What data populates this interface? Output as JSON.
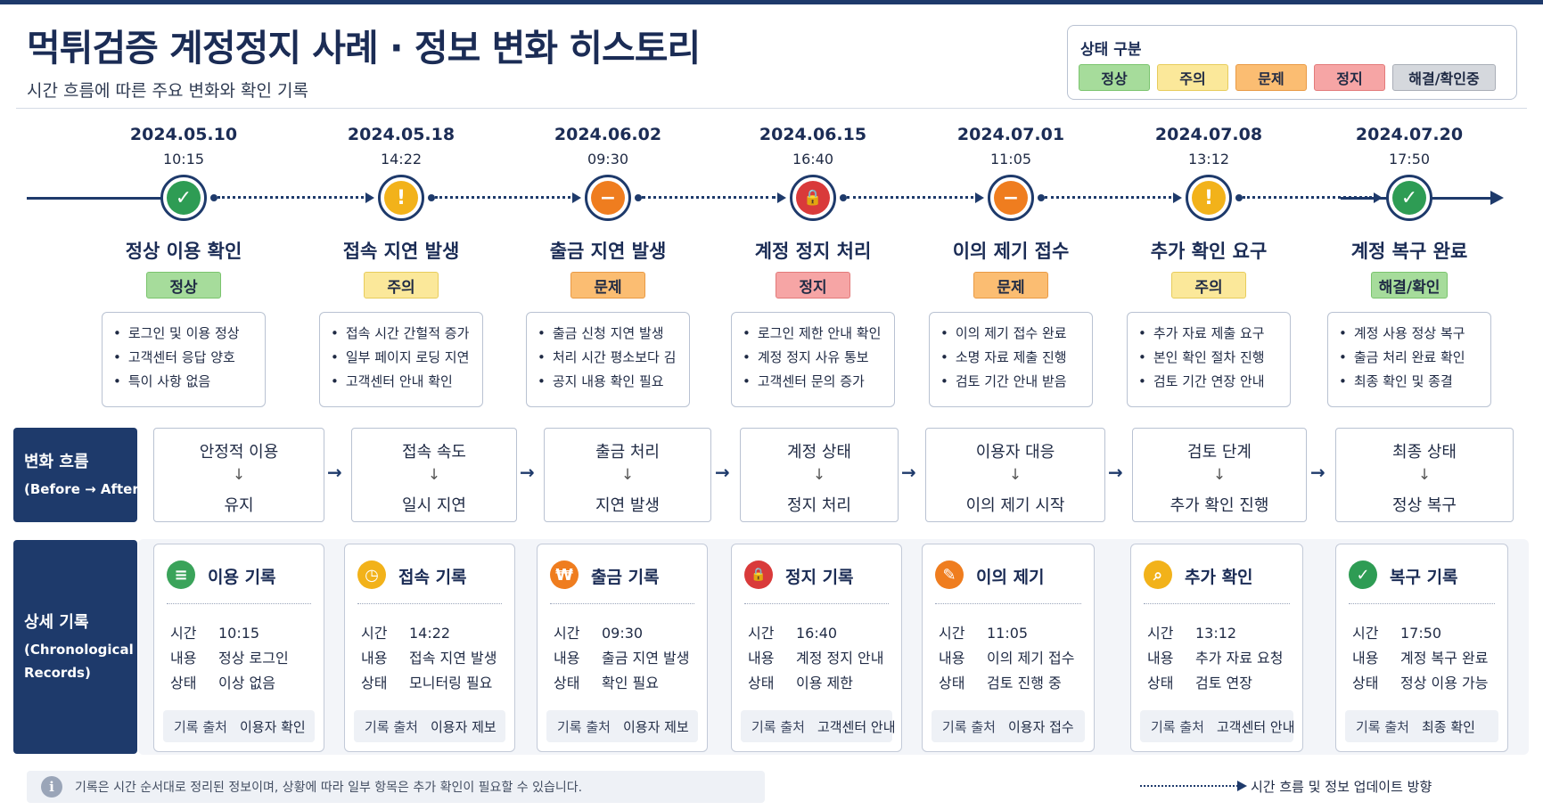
{
  "title": "먹튀검증 계정정지 사례 · 정보 변화 히스토리",
  "subtitle": "시간 흐름에 따른 주요 변화와 확인 기록",
  "legend": {
    "title": "상태 구분",
    "items": [
      {
        "label": "정상",
        "bg": "#a6dc9b",
        "border": "#7bc46e"
      },
      {
        "label": "주의",
        "bg": "#fbe89a",
        "border": "#e7cc5c"
      },
      {
        "label": "문제",
        "bg": "#fbbd72",
        "border": "#e99a45"
      },
      {
        "label": "정지",
        "bg": "#f6a5a5",
        "border": "#e27a7a"
      },
      {
        "label": "해결/확인중",
        "bg": "#d5d8dd",
        "border": "#a9aeb7"
      }
    ]
  },
  "events": [
    {
      "date": "2024.05.10",
      "time": "10:15",
      "name": "정상 이용 확인",
      "badge": "정상",
      "badge_bg": "#a6dc9b",
      "badge_border": "#7bc46e",
      "icon": "check-icon",
      "glyph": "✓",
      "color": "#2e9c54",
      "bullets": [
        "로그인 및 이용 정상",
        "고객센터 응답 양호",
        "특이 사항 없음"
      ]
    },
    {
      "date": "2024.05.18",
      "time": "14:22",
      "name": "접속 지연 발생",
      "badge": "주의",
      "badge_bg": "#fbe89a",
      "badge_border": "#e7cc5c",
      "icon": "exclamation-icon",
      "glyph": "!",
      "color": "#f2b21a",
      "bullets": [
        "접속 시간 간헐적 증가",
        "일부 페이지 로딩 지연",
        "고객센터 안내 확인"
      ]
    },
    {
      "date": "2024.06.02",
      "time": "09:30",
      "name": "출금 지연 발생",
      "badge": "문제",
      "badge_bg": "#fbbd72",
      "badge_border": "#e99a45",
      "icon": "minus-icon",
      "glyph": "−",
      "color": "#ef7d1f",
      "bullets": [
        "출금 신청 지연 발생",
        "처리 시간 평소보다 김",
        "공지 내용 확인 필요"
      ]
    },
    {
      "date": "2024.06.15",
      "time": "16:40",
      "name": "계정 정지 처리",
      "badge": "정지",
      "badge_bg": "#f6a5a5",
      "badge_border": "#e27a7a",
      "icon": "lock-icon",
      "glyph": "🔒",
      "color": "#d93a3a",
      "bullets": [
        "로그인 제한 안내 확인",
        "계정 정지 사유 통보",
        "고객센터 문의 증가"
      ]
    },
    {
      "date": "2024.07.01",
      "time": "11:05",
      "name": "이의 제기 접수",
      "badge": "문제",
      "badge_bg": "#fbbd72",
      "badge_border": "#e99a45",
      "icon": "minus-icon",
      "glyph": "−",
      "color": "#ef7d1f",
      "bullets": [
        "이의 제기 접수 완료",
        "소명 자료 제출 진행",
        "검토 기간 안내 받음"
      ]
    },
    {
      "date": "2024.07.08",
      "time": "13:12",
      "name": "추가 확인 요구",
      "badge": "주의",
      "badge_bg": "#fbe89a",
      "badge_border": "#e7cc5c",
      "icon": "exclamation-icon",
      "glyph": "!",
      "color": "#f2b21a",
      "bullets": [
        "추가 자료 제출 요구",
        "본인 확인 절차 진행",
        "검토 기간 연장 안내"
      ]
    },
    {
      "date": "2024.07.20",
      "time": "17:50",
      "name": "계정 복구 완료",
      "badge": "해결/확인",
      "badge_bg": "#a6dc9b",
      "badge_border": "#7bc46e",
      "icon": "check-icon",
      "glyph": "✓",
      "color": "#2e9c54",
      "bullets": [
        "계정 사용 정상 복구",
        "출금 처리 완료 확인",
        "최종 확인 및 종결"
      ]
    }
  ],
  "flow": {
    "title": "변화 흐름",
    "subtitle": "(Before → After)",
    "steps": [
      {
        "before": "안정적 이용",
        "after": "유지"
      },
      {
        "before": "접속 속도",
        "after": "일시 지연"
      },
      {
        "before": "출금 처리",
        "after": "지연 발생"
      },
      {
        "before": "계정 상태",
        "after": "정지 처리"
      },
      {
        "before": "이용자 대응",
        "after": "이의 제기 시작"
      },
      {
        "before": "검토 단계",
        "after": "추가 확인 진행"
      },
      {
        "before": "최종 상태",
        "after": "정상 복구"
      }
    ]
  },
  "records": {
    "title": "상세 기록",
    "subtitle_1": "(Chronological",
    "subtitle_2": "Records)",
    "keys": {
      "time": "시간",
      "content": "내용",
      "status": "상태",
      "source": "기록 출처"
    },
    "items": [
      {
        "title": "이용 기록",
        "icon": "document-icon",
        "glyph": "≡",
        "color": "#3aa35a",
        "time": "10:15",
        "content": "정상 로그인",
        "status": "이상 없음",
        "source": "이용자 확인"
      },
      {
        "title": "접속 기록",
        "icon": "clock-icon",
        "glyph": "◷",
        "color": "#f2b21a",
        "time": "14:22",
        "content": "접속 지연 발생",
        "status": "모니터링 필요",
        "source": "이용자 제보"
      },
      {
        "title": "출금 기록",
        "icon": "currency-icon",
        "glyph": "₩",
        "color": "#ef7d1f",
        "time": "09:30",
        "content": "출금 지연 발생",
        "status": "확인 필요",
        "source": "이용자 제보"
      },
      {
        "title": "정지 기록",
        "icon": "lock-icon",
        "glyph": "🔒",
        "color": "#d93a3a",
        "time": "16:40",
        "content": "계정 정지 안내",
        "status": "이용 제한",
        "source": "고객센터 안내"
      },
      {
        "title": "이의 제기",
        "icon": "pencil-icon",
        "glyph": "✎",
        "color": "#ef7d1f",
        "time": "11:05",
        "content": "이의 제기 접수",
        "status": "검토 진행 중",
        "source": "이용자 접수"
      },
      {
        "title": "추가 확인",
        "icon": "search-icon",
        "glyph": "⌕",
        "color": "#f2b21a",
        "time": "13:12",
        "content": "추가 자료 요청",
        "status": "검토 연장",
        "source": "고객센터 안내"
      },
      {
        "title": "복구 기록",
        "icon": "check-circle-icon",
        "glyph": "✓",
        "color": "#2e9c54",
        "time": "17:50",
        "content": "계정 복구 완료",
        "status": "정상 이용 가능",
        "source": "최종 확인"
      }
    ]
  },
  "footer": {
    "note": "기록은 시간 순서대로 정리된 정보이며, 상황에 따라 일부 항목은 추가 확인이 필요할 수 있습니다.",
    "direction": "시간 흐름 및 정보 업데이트 방향"
  }
}
